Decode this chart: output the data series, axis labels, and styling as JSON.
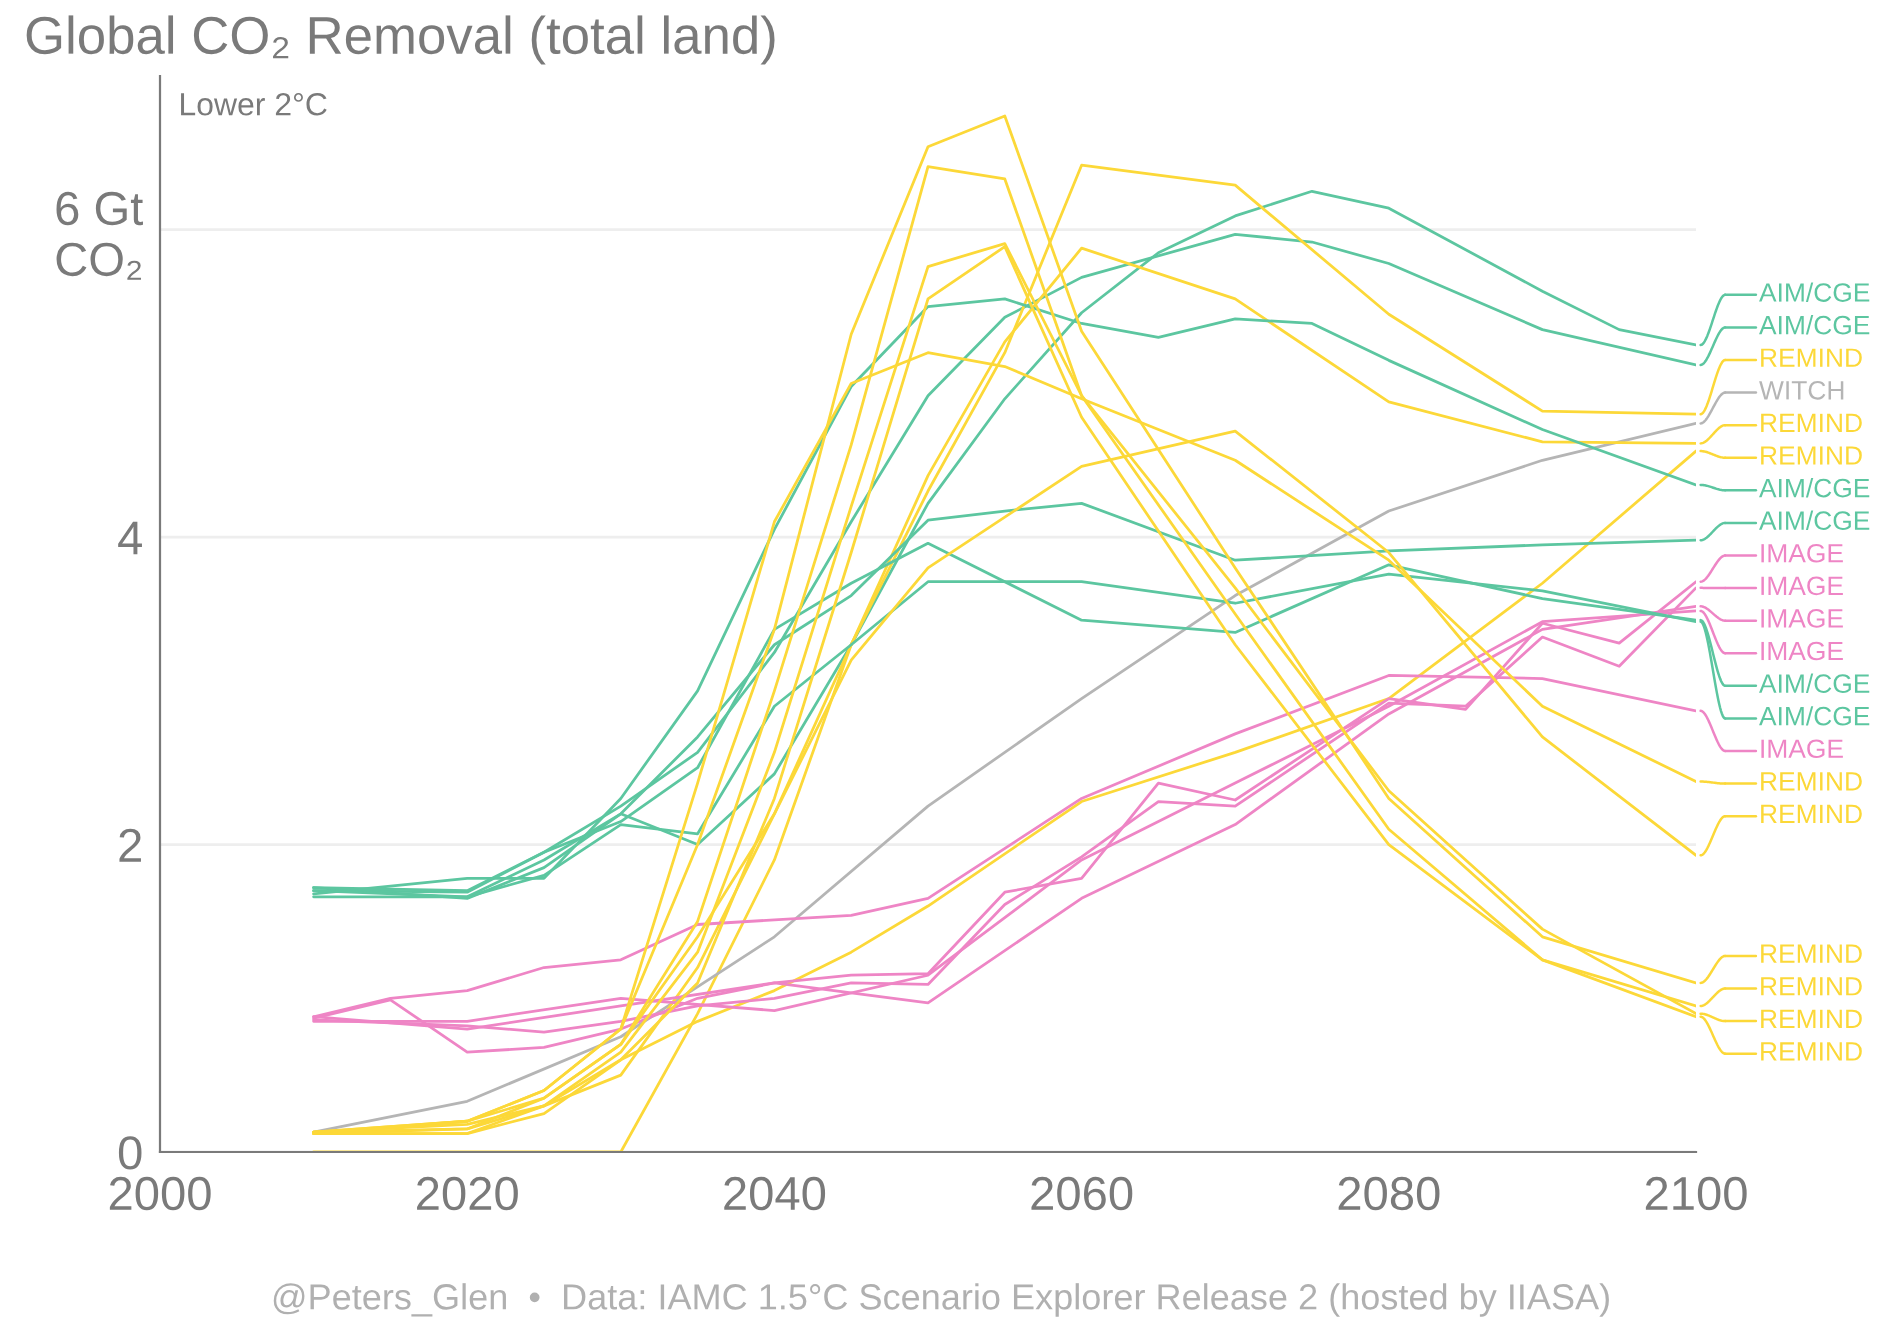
{
  "chart_data": {
    "type": "line",
    "title": "Global CO₂ Removal (total land)",
    "annotations": [
      "Lower 2°C",
      "@Peters_Glen  •  Data: IAMC 1.5°C Scenario Explorer Release 2 (hosted by IIASA)"
    ],
    "xlim": [
      2000,
      2100
    ],
    "xticks": [
      2000,
      2020,
      2040,
      2060,
      2080,
      2100
    ],
    "ylim": [
      0,
      7
    ],
    "yticks": [
      0,
      2,
      4,
      {
        "value": 6,
        "label": "6 Gt\nCO₂"
      }
    ],
    "grid": "y",
    "legend": "right",
    "series": [
      {
        "name": "AIM/CGE",
        "color": "#5cc6a0",
        "x": [
          2010,
          2020,
          2025,
          2030,
          2035,
          2040,
          2045,
          2050,
          2055,
          2060,
          2065,
          2070,
          2075,
          2080,
          2090,
          2095,
          2100
        ],
        "values": [
          1.72,
          1.65,
          1.85,
          2.2,
          2.0,
          2.46,
          3.3,
          4.22,
          4.9,
          5.46,
          5.85,
          6.09,
          6.25,
          6.14,
          5.6,
          5.35,
          5.25
        ]
      },
      {
        "name": "AIM/CGE",
        "color": "#5cc6a0",
        "x": [
          2010,
          2020,
          2025,
          2030,
          2035,
          2040,
          2045,
          2050,
          2055,
          2060,
          2070,
          2075,
          2080,
          2090,
          2100
        ],
        "values": [
          1.7,
          1.69,
          1.95,
          2.25,
          2.6,
          3.25,
          4.1,
          4.92,
          5.43,
          5.69,
          5.97,
          5.92,
          5.78,
          5.35,
          5.12
        ]
      },
      {
        "name": "REMIND",
        "color": "#fcd838",
        "x": [
          2010,
          2020,
          2025,
          2030,
          2035,
          2040,
          2045,
          2050,
          2055,
          2060,
          2070,
          2080,
          2090,
          2100
        ],
        "values": [
          0,
          0,
          0,
          0,
          0.9,
          1.9,
          3.3,
          4.3,
          5.2,
          6.42,
          6.29,
          5.45,
          4.82,
          4.8
        ]
      },
      {
        "name": "WITCH",
        "color": "#b5b5b5",
        "x": [
          2010,
          2020,
          2030,
          2040,
          2050,
          2060,
          2070,
          2080,
          2090,
          2100
        ],
        "values": [
          0.13,
          0.33,
          0.75,
          1.4,
          2.25,
          2.95,
          3.62,
          4.17,
          4.5,
          4.74
        ]
      },
      {
        "name": "REMIND",
        "color": "#fcd838",
        "x": [
          2010,
          2020,
          2025,
          2030,
          2035,
          2040,
          2045,
          2050,
          2055,
          2060,
          2070,
          2080,
          2090,
          2100
        ],
        "values": [
          0.13,
          0.15,
          0.3,
          0.5,
          1.2,
          2.2,
          3.3,
          4.4,
          5.27,
          5.88,
          5.55,
          4.88,
          4.62,
          4.61
        ]
      },
      {
        "name": "REMIND",
        "color": "#fcd838",
        "x": [
          2010,
          2020,
          2025,
          2030,
          2035,
          2040,
          2045,
          2050,
          2060,
          2070,
          2080,
          2090,
          2100
        ],
        "values": [
          0.12,
          0.12,
          0.3,
          0.6,
          0.85,
          1.05,
          1.3,
          1.6,
          2.28,
          2.6,
          2.95,
          3.7,
          4.56
        ]
      },
      {
        "name": "AIM/CGE",
        "color": "#5cc6a0",
        "x": [
          2010,
          2020,
          2025,
          2030,
          2035,
          2040,
          2045,
          2050,
          2055,
          2060,
          2065,
          2070,
          2075,
          2080,
          2090,
          2100
        ],
        "values": [
          1.68,
          1.78,
          1.78,
          2.3,
          3.0,
          4.05,
          4.98,
          5.5,
          5.55,
          5.39,
          5.3,
          5.42,
          5.39,
          5.15,
          4.7,
          4.34
        ]
      },
      {
        "name": "AIM/CGE",
        "color": "#5cc6a0",
        "x": [
          2010,
          2020,
          2025,
          2030,
          2035,
          2040,
          2045,
          2050,
          2055,
          2060,
          2070,
          2080,
          2090,
          2100
        ],
        "values": [
          1.7,
          1.66,
          1.9,
          2.2,
          2.7,
          3.3,
          3.62,
          4.11,
          4.17,
          4.22,
          3.85,
          3.91,
          3.95,
          3.98
        ]
      },
      {
        "name": "IMAGE",
        "color": "#ee85c5",
        "x": [
          2010,
          2015,
          2020,
          2025,
          2030,
          2035,
          2040,
          2045,
          2050,
          2055,
          2060,
          2065,
          2070,
          2080,
          2085,
          2090,
          2095,
          2100
        ],
        "values": [
          0.87,
          0.99,
          0.65,
          0.68,
          0.8,
          1.0,
          1.1,
          1.15,
          1.16,
          1.69,
          1.78,
          2.4,
          2.29,
          2.95,
          2.88,
          3.44,
          3.31,
          3.71
        ]
      },
      {
        "name": "IMAGE",
        "color": "#ee85c5",
        "x": [
          2010,
          2020,
          2025,
          2030,
          2035,
          2040,
          2045,
          2050,
          2055,
          2060,
          2065,
          2070,
          2080,
          2085,
          2090,
          2095,
          2100
        ],
        "values": [
          0.86,
          0.82,
          0.78,
          0.85,
          0.95,
          1.0,
          1.1,
          1.09,
          1.61,
          1.92,
          2.28,
          2.25,
          2.92,
          2.9,
          3.35,
          3.16,
          3.67
        ]
      },
      {
        "name": "IMAGE",
        "color": "#ee85c5",
        "x": [
          2010,
          2020,
          2030,
          2040,
          2050,
          2060,
          2070,
          2080,
          2090,
          2100
        ],
        "values": [
          0.88,
          0.8,
          0.95,
          1.1,
          0.97,
          1.65,
          2.13,
          2.85,
          3.4,
          3.55
        ]
      },
      {
        "name": "IMAGE",
        "color": "#ee85c5",
        "x": [
          2010,
          2020,
          2030,
          2040,
          2050,
          2060,
          2070,
          2080,
          2090,
          2100
        ],
        "values": [
          0.85,
          0.85,
          1.0,
          0.92,
          1.15,
          1.9,
          2.4,
          2.9,
          3.45,
          3.52
        ]
      },
      {
        "name": "AIM/CGE",
        "color": "#5cc6a0",
        "x": [
          2010,
          2020,
          2025,
          2030,
          2035,
          2040,
          2045,
          2050,
          2060,
          2070,
          2080,
          2090,
          2100
        ],
        "values": [
          1.72,
          1.7,
          1.95,
          2.15,
          2.5,
          3.4,
          3.7,
          3.96,
          3.46,
          3.38,
          3.82,
          3.6,
          3.46
        ]
      },
      {
        "name": "AIM/CGE",
        "color": "#5cc6a0",
        "x": [
          2010,
          2020,
          2025,
          2030,
          2035,
          2040,
          2045,
          2050,
          2055,
          2060,
          2070,
          2080,
          2090,
          2100
        ],
        "values": [
          1.66,
          1.66,
          1.8,
          2.13,
          2.07,
          2.9,
          3.3,
          3.71,
          3.71,
          3.71,
          3.57,
          3.76,
          3.65,
          3.45
        ]
      },
      {
        "name": "IMAGE",
        "color": "#ee85c5",
        "x": [
          2010,
          2015,
          2020,
          2025,
          2030,
          2035,
          2040,
          2045,
          2050,
          2060,
          2070,
          2080,
          2090,
          2100
        ],
        "values": [
          0.88,
          1.0,
          1.05,
          1.2,
          1.25,
          1.48,
          1.51,
          1.54,
          1.65,
          2.3,
          2.72,
          3.1,
          3.08,
          2.87
        ]
      },
      {
        "name": "REMIND",
        "color": "#fcd838",
        "x": [
          2010,
          2020,
          2025,
          2030,
          2035,
          2040,
          2045,
          2050,
          2055,
          2060,
          2070,
          2080,
          2090,
          2100
        ],
        "values": [
          0.13,
          0.2,
          0.4,
          0.8,
          2.4,
          4.1,
          5.0,
          5.2,
          5.11,
          4.9,
          4.5,
          3.85,
          2.9,
          2.41
        ]
      },
      {
        "name": "REMIND",
        "color": "#fcd838",
        "x": [
          2010,
          2020,
          2025,
          2030,
          2035,
          2040,
          2045,
          2050,
          2060,
          2070,
          2080,
          2090,
          2100
        ],
        "values": [
          0.12,
          0.2,
          0.35,
          0.7,
          1.4,
          2.2,
          3.2,
          3.8,
          4.46,
          4.69,
          3.9,
          2.7,
          1.93
        ]
      },
      {
        "name": "REMIND",
        "color": "#fcd838",
        "x": [
          2010,
          2020,
          2025,
          2030,
          2035,
          2040,
          2045,
          2050,
          2055,
          2060,
          2070,
          2080,
          2090,
          2100
        ],
        "values": [
          0.13,
          0.2,
          0.4,
          0.8,
          2.0,
          3.4,
          5.32,
          6.54,
          6.74,
          5.34,
          3.8,
          2.3,
          1.4,
          1.1
        ]
      },
      {
        "name": "REMIND",
        "color": "#fcd838",
        "x": [
          2010,
          2020,
          2025,
          2030,
          2035,
          2040,
          2045,
          2050,
          2055,
          2060,
          2070,
          2080,
          2090,
          2100
        ],
        "values": [
          0.12,
          0.15,
          0.35,
          0.7,
          1.5,
          3.0,
          4.6,
          6.41,
          6.33,
          4.92,
          3.5,
          2.1,
          1.25,
          0.95
        ]
      },
      {
        "name": "REMIND",
        "color": "#fcd838",
        "x": [
          2010,
          2020,
          2025,
          2030,
          2035,
          2040,
          2045,
          2050,
          2055,
          2060,
          2070,
          2080,
          2090,
          2100
        ],
        "values": [
          0.13,
          0.18,
          0.3,
          0.65,
          1.3,
          2.6,
          4.2,
          5.76,
          5.91,
          4.92,
          3.67,
          2.35,
          1.45,
          0.9
        ]
      },
      {
        "name": "REMIND",
        "color": "#fcd838",
        "x": [
          2010,
          2020,
          2025,
          2030,
          2035,
          2040,
          2045,
          2050,
          2055,
          2060,
          2070,
          2080,
          2090,
          2100
        ],
        "values": [
          0.12,
          0.12,
          0.25,
          0.6,
          1.1,
          2.3,
          3.9,
          5.55,
          5.89,
          4.78,
          3.3,
          2.0,
          1.25,
          0.88
        ]
      }
    ]
  }
}
